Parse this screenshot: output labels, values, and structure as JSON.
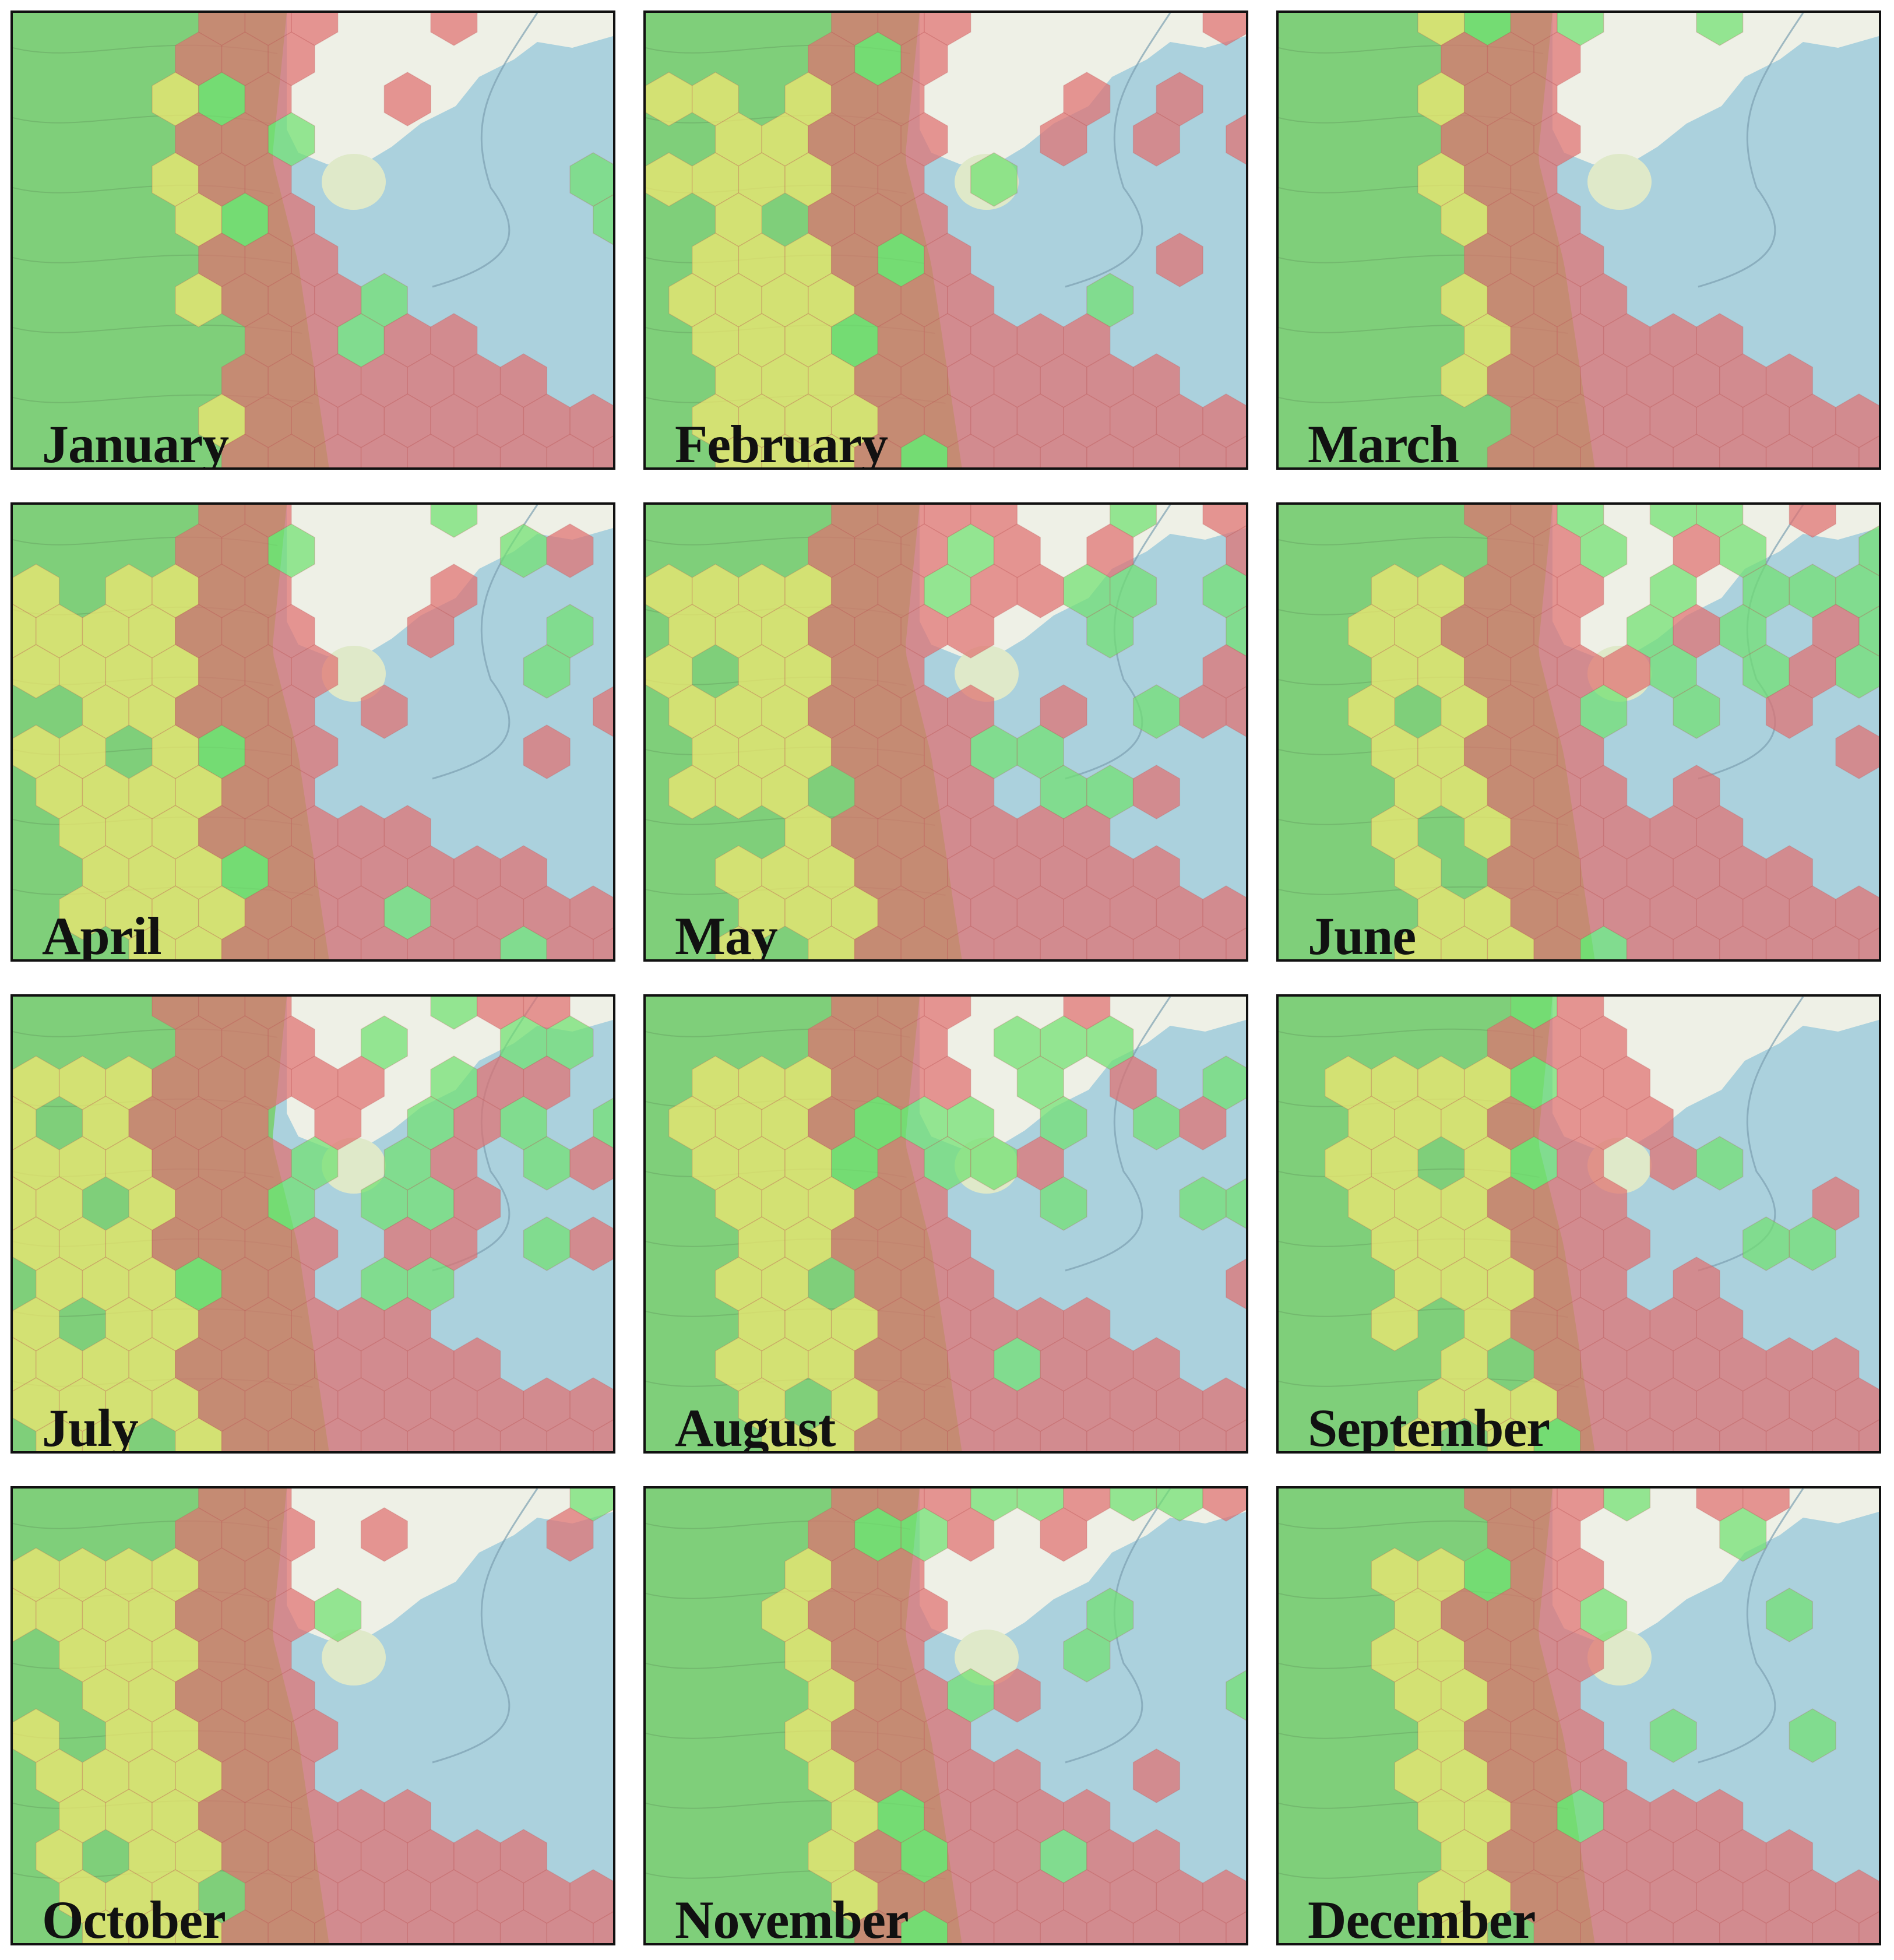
{
  "panels": [
    {
      "month": "January"
    },
    {
      "month": "February"
    },
    {
      "month": "March"
    },
    {
      "month": "April"
    },
    {
      "month": "May"
    },
    {
      "month": "June"
    },
    {
      "month": "July"
    },
    {
      "month": "August"
    },
    {
      "month": "September"
    },
    {
      "month": "October"
    },
    {
      "month": "November"
    },
    {
      "month": "December"
    }
  ],
  "colors": {
    "land": "#7fcf7a",
    "light_land": "#eef0e6",
    "sea": "#abd1dd",
    "hex_red": "#e07070",
    "hex_yellow": "#f4e870",
    "hex_green": "#70e070"
  }
}
